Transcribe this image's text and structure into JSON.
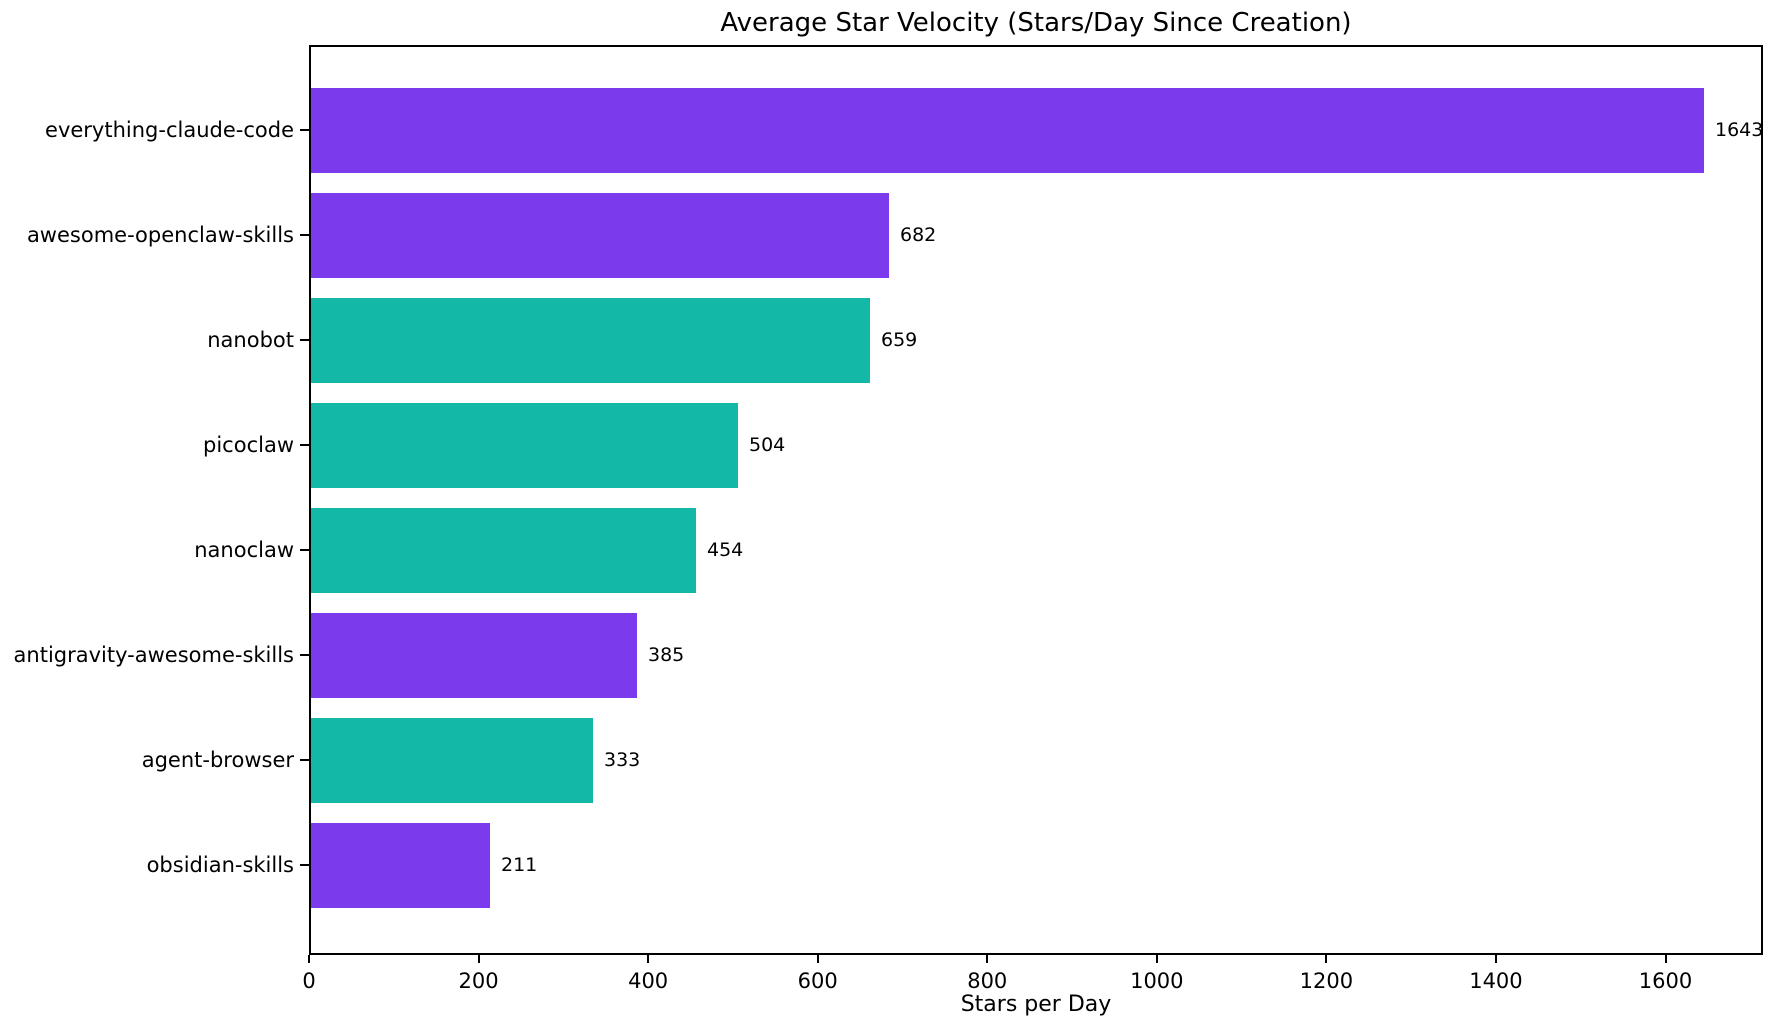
{
  "chart_data": {
    "type": "bar",
    "orientation": "horizontal",
    "title": "Average Star Velocity (Stars/Day Since Creation)",
    "xlabel": "Stars per Day",
    "ylabel": "",
    "categories": [
      "everything-claude-code",
      "awesome-openclaw-skills",
      "nanobot",
      "picoclaw",
      "nanoclaw",
      "antigravity-awesome-skills",
      "agent-browser",
      "obsidian-skills"
    ],
    "values": [
      1643,
      682,
      659,
      504,
      454,
      385,
      333,
      211
    ],
    "value_labels": [
      "1643",
      "682",
      "659",
      "504",
      "454",
      "385",
      "333",
      "211"
    ],
    "bar_colors": [
      "purple",
      "purple",
      "teal",
      "teal",
      "teal",
      "purple",
      "teal",
      "purple"
    ],
    "palette": {
      "purple": "#7c3aed",
      "teal": "#14b8a6"
    },
    "xticks": [
      0,
      200,
      400,
      600,
      800,
      1000,
      1200,
      1400,
      1600
    ],
    "xtick_labels": [
      "0",
      "200",
      "400",
      "600",
      "800",
      "1000",
      "1200",
      "1400",
      "1600"
    ],
    "xlim": [
      0,
      1715
    ],
    "grid": false,
    "legend": null,
    "background_color": "#ffffff",
    "text_color": "#000000",
    "spine_color": "#000000"
  }
}
